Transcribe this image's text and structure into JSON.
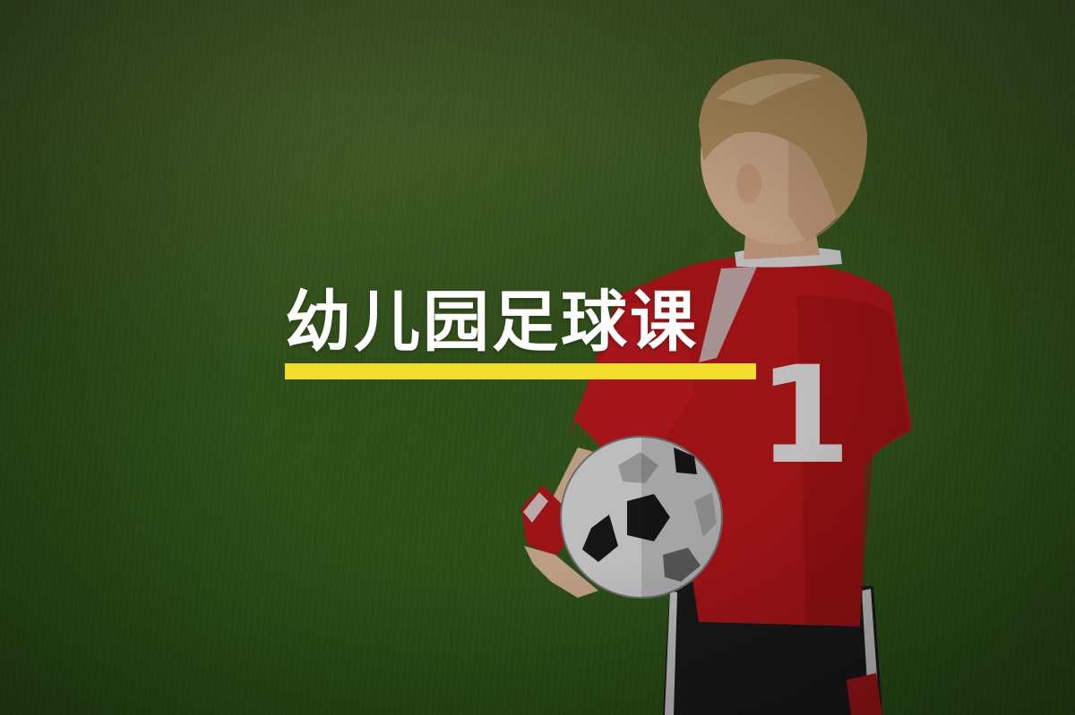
{
  "title": "幼儿园足球课",
  "jersey_number": "1",
  "colors": {
    "accent_underline": "#f2dc2b",
    "title_text": "#ffffff",
    "jersey_red": "#c8191c",
    "grass_green": "#3f6322"
  }
}
